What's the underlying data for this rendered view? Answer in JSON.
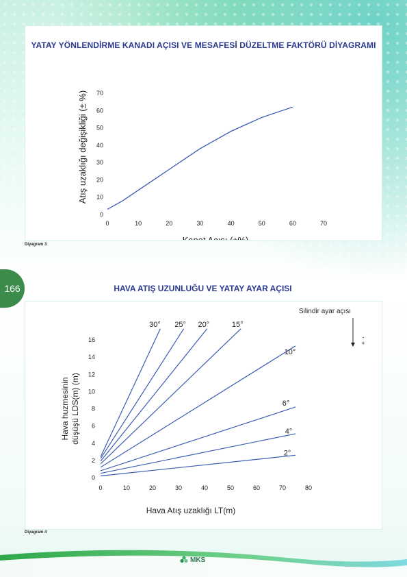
{
  "page_number": "166",
  "diagram3": {
    "title": "YATAY YÖNLENDİRME KANADI AÇISI VE MESAFESİ DÜZELTME FAKTÖRÜ DİYAGRAMI",
    "caption": "Diyagram 3"
  },
  "diagram4": {
    "title": "HAVA ATIŞ UZUNLUĞU VE YATAY AYAR AÇISI",
    "caption": "Diyagram 4",
    "annotation": "Silindir ayar açısı",
    "minus_sign": "-",
    "plus_sign": "+"
  },
  "logo_text": "MKS",
  "colors": {
    "title": "#2b3a8f",
    "line": "#3b5bb3",
    "page_tab": "#3b8b4a"
  },
  "chart_data": [
    {
      "type": "line",
      "title": "",
      "xlabel": "Kanat Açısı (±%)",
      "ylabel": "Atış uzaklığı değişikliği (± %)",
      "xlim": [
        0,
        70
      ],
      "ylim": [
        0,
        70
      ],
      "xticks": [
        0,
        10,
        20,
        30,
        40,
        50,
        60,
        70
      ],
      "yticks": [
        0,
        10,
        20,
        30,
        40,
        50,
        60,
        70
      ],
      "series": [
        {
          "x": [
            0,
            5,
            10,
            15,
            20,
            25,
            30,
            35,
            40,
            45,
            50,
            55,
            60
          ],
          "y": [
            3,
            8,
            14,
            20,
            26,
            32,
            38,
            43,
            48,
            52,
            56,
            59,
            62
          ]
        }
      ]
    },
    {
      "type": "line",
      "title": "",
      "xlabel": "Hava Atış uzaklığı LT(m)",
      "ylabel": "Hava huzmesinin düşüşü LDS(m) (m)",
      "xlim": [
        0,
        80
      ],
      "ylim": [
        0,
        16
      ],
      "xticks": [
        0,
        10,
        20,
        30,
        40,
        50,
        60,
        70,
        80
      ],
      "yticks": [
        0,
        2,
        4,
        6,
        8,
        10,
        12,
        14,
        16
      ],
      "series": [
        {
          "name": "30°",
          "x": [
            0,
            23
          ],
          "y": [
            2.4,
            17.3
          ]
        },
        {
          "name": "25°",
          "x": [
            0,
            32
          ],
          "y": [
            2.2,
            17.3
          ]
        },
        {
          "name": "20°",
          "x": [
            0,
            41
          ],
          "y": [
            1.9,
            17.3
          ]
        },
        {
          "name": "15°",
          "x": [
            0,
            54
          ],
          "y": [
            1.6,
            17.3
          ]
        },
        {
          "name": "10°",
          "x": [
            0,
            75
          ],
          "y": [
            1.2,
            15.3
          ]
        },
        {
          "name": "6°",
          "x": [
            0,
            75
          ],
          "y": [
            0.8,
            8.2
          ]
        },
        {
          "name": "4°",
          "x": [
            0,
            75
          ],
          "y": [
            0.5,
            5.1
          ]
        },
        {
          "name": "2°",
          "x": [
            0,
            75
          ],
          "y": [
            0.2,
            2.6
          ]
        }
      ]
    }
  ]
}
